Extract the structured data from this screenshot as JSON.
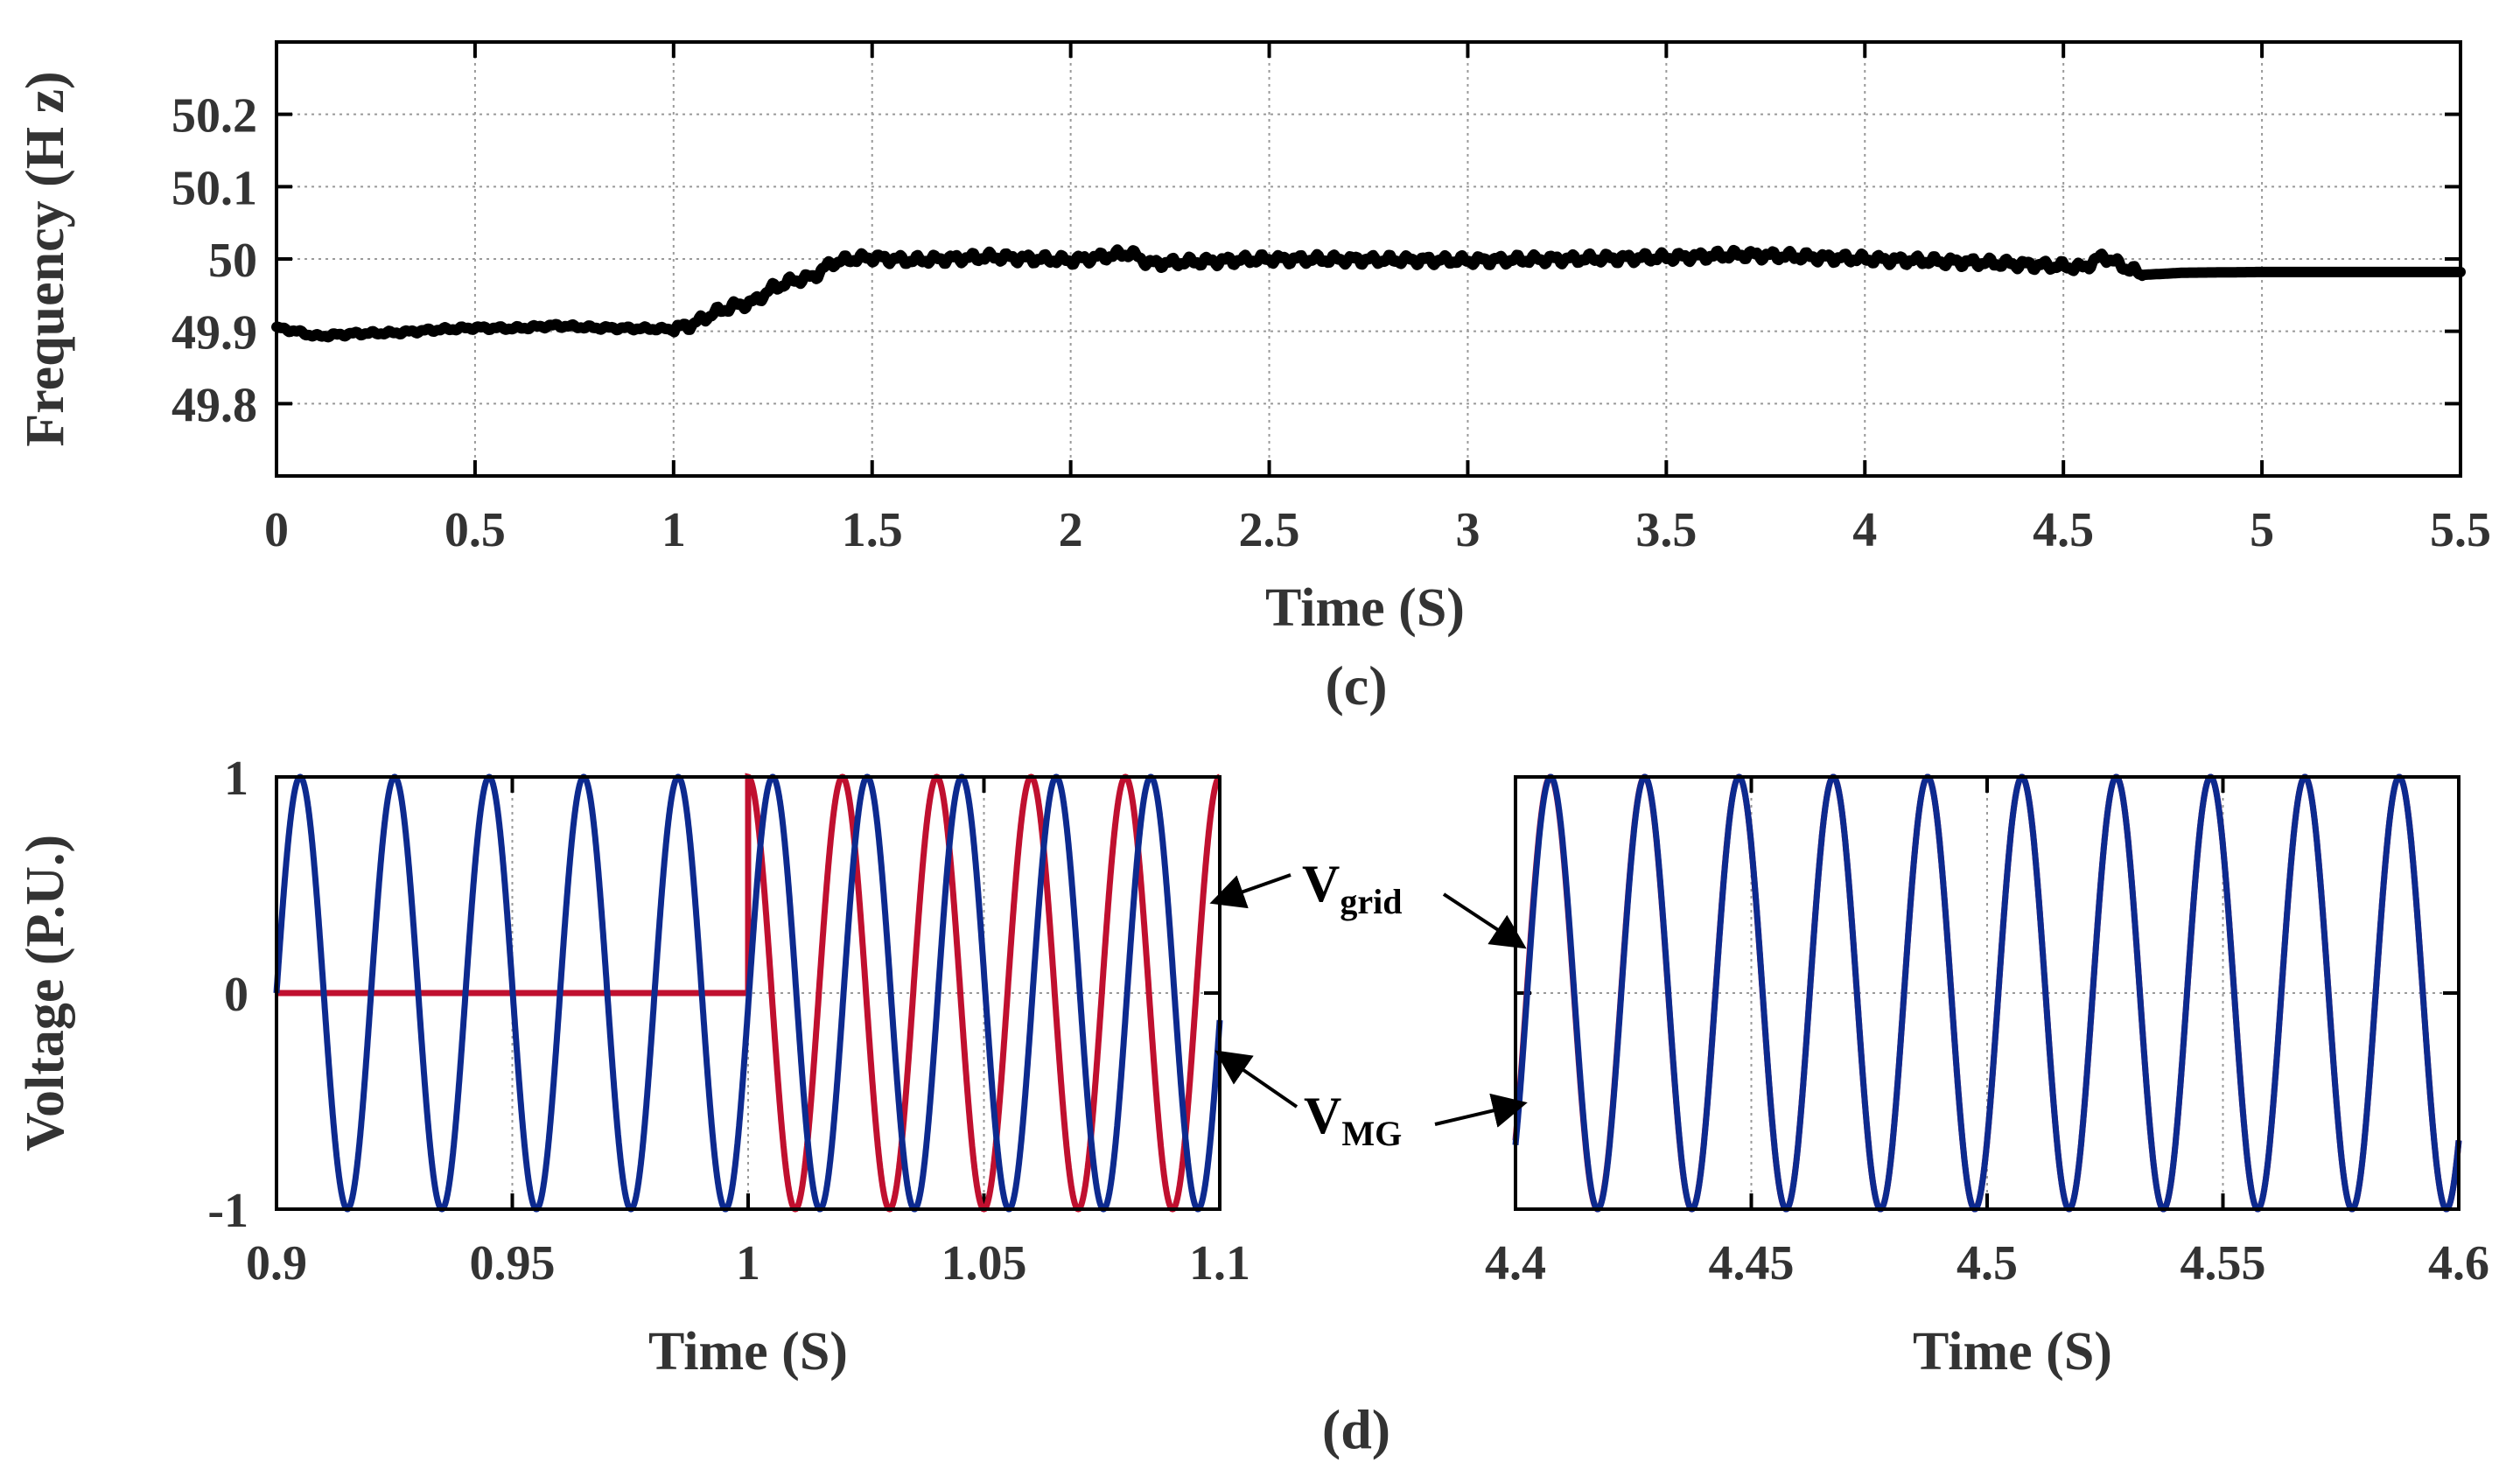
{
  "chart_data": [
    {
      "id": "c",
      "type": "line",
      "panel_label": "(c)",
      "xlabel": "Time (S)",
      "ylabel": "Frequency (H z)",
      "xlim": [
        0,
        5.5
      ],
      "ylim": [
        49.7,
        50.3
      ],
      "xticks": [
        "0",
        "0.5",
        "1",
        "1.5",
        "2",
        "2.5",
        "3",
        "3.5",
        "4",
        "4.5",
        "5",
        "5.5"
      ],
      "yticks": [
        "49.8",
        "49.9",
        "50",
        "50.1",
        "50.2"
      ],
      "grid": true,
      "series": [
        {
          "name": "Frequency",
          "color": "#000000",
          "x": [
            0,
            0.05,
            0.1,
            0.2,
            0.3,
            0.4,
            0.5,
            0.6,
            0.7,
            0.8,
            0.9,
            1.0,
            1.05,
            1.1,
            1.15,
            1.2,
            1.25,
            1.3,
            1.35,
            1.4,
            1.45,
            1.5,
            1.6,
            1.8,
            2.0,
            2.15,
            2.2,
            2.5,
            3.0,
            3.5,
            3.7,
            4.0,
            4.3,
            4.5,
            4.55,
            4.6,
            4.65,
            4.7,
            4.8,
            5.0,
            5.5
          ],
          "y": [
            49.905,
            49.9,
            49.893,
            49.897,
            49.898,
            49.902,
            49.905,
            49.904,
            49.908,
            49.905,
            49.904,
            49.903,
            49.91,
            49.925,
            49.935,
            49.94,
            49.96,
            49.97,
            49.975,
            49.995,
            50.0,
            50.002,
            49.998,
            50.003,
            49.998,
            50.008,
            49.994,
            50.0,
            49.998,
            50.002,
            50.006,
            50.0,
            49.995,
            49.99,
            49.988,
            50.004,
            49.99,
            49.978,
            49.981,
            49.982,
            49.982
          ]
        }
      ]
    },
    {
      "id": "d-left",
      "type": "line",
      "panel_label": "(d)",
      "xlabel": "Time (S)",
      "ylabel": "Voltage (P.U.)",
      "xlim": [
        0.9,
        1.1
      ],
      "ylim": [
        -1,
        1
      ],
      "xticks": [
        "0.9",
        "0.95",
        "1",
        "1.05",
        "1.1"
      ],
      "yticks": [
        "-1",
        "0",
        "1"
      ],
      "grid": true,
      "series": [
        {
          "name": "V_MG",
          "color": "#0d2a8f",
          "description": "sine, amplitude 1, frequency 49.9 Hz, starting at 0 at t=0.9"
        },
        {
          "name": "V_grid",
          "color": "#c0102f",
          "description": "0 until t=1, then sine amplitude 1 at 50 Hz"
        }
      ]
    },
    {
      "id": "d-right",
      "type": "line",
      "xlabel": "Time (S)",
      "xlim": [
        4.4,
        4.6
      ],
      "ylim": [
        -1,
        1
      ],
      "xticks": [
        "4.4",
        "4.45",
        "4.5",
        "4.55",
        "4.6"
      ],
      "grid": true,
      "series": [
        {
          "name": "V_MG",
          "color": "#0d2a8f",
          "description": "sine, amplitude 1, 50 Hz, synchronized with grid"
        },
        {
          "name": "V_grid",
          "color": "#c0102f",
          "description": "sine, amplitude 1, 50 Hz"
        }
      ]
    }
  ],
  "legend": {
    "vgrid_main": "V",
    "vgrid_sub": "grid",
    "vmg_main": "V",
    "vmg_sub": "MG"
  },
  "colors": {
    "vmg": "#0d2a8f",
    "vgrid": "#c0102f",
    "frequency": "#000000"
  }
}
